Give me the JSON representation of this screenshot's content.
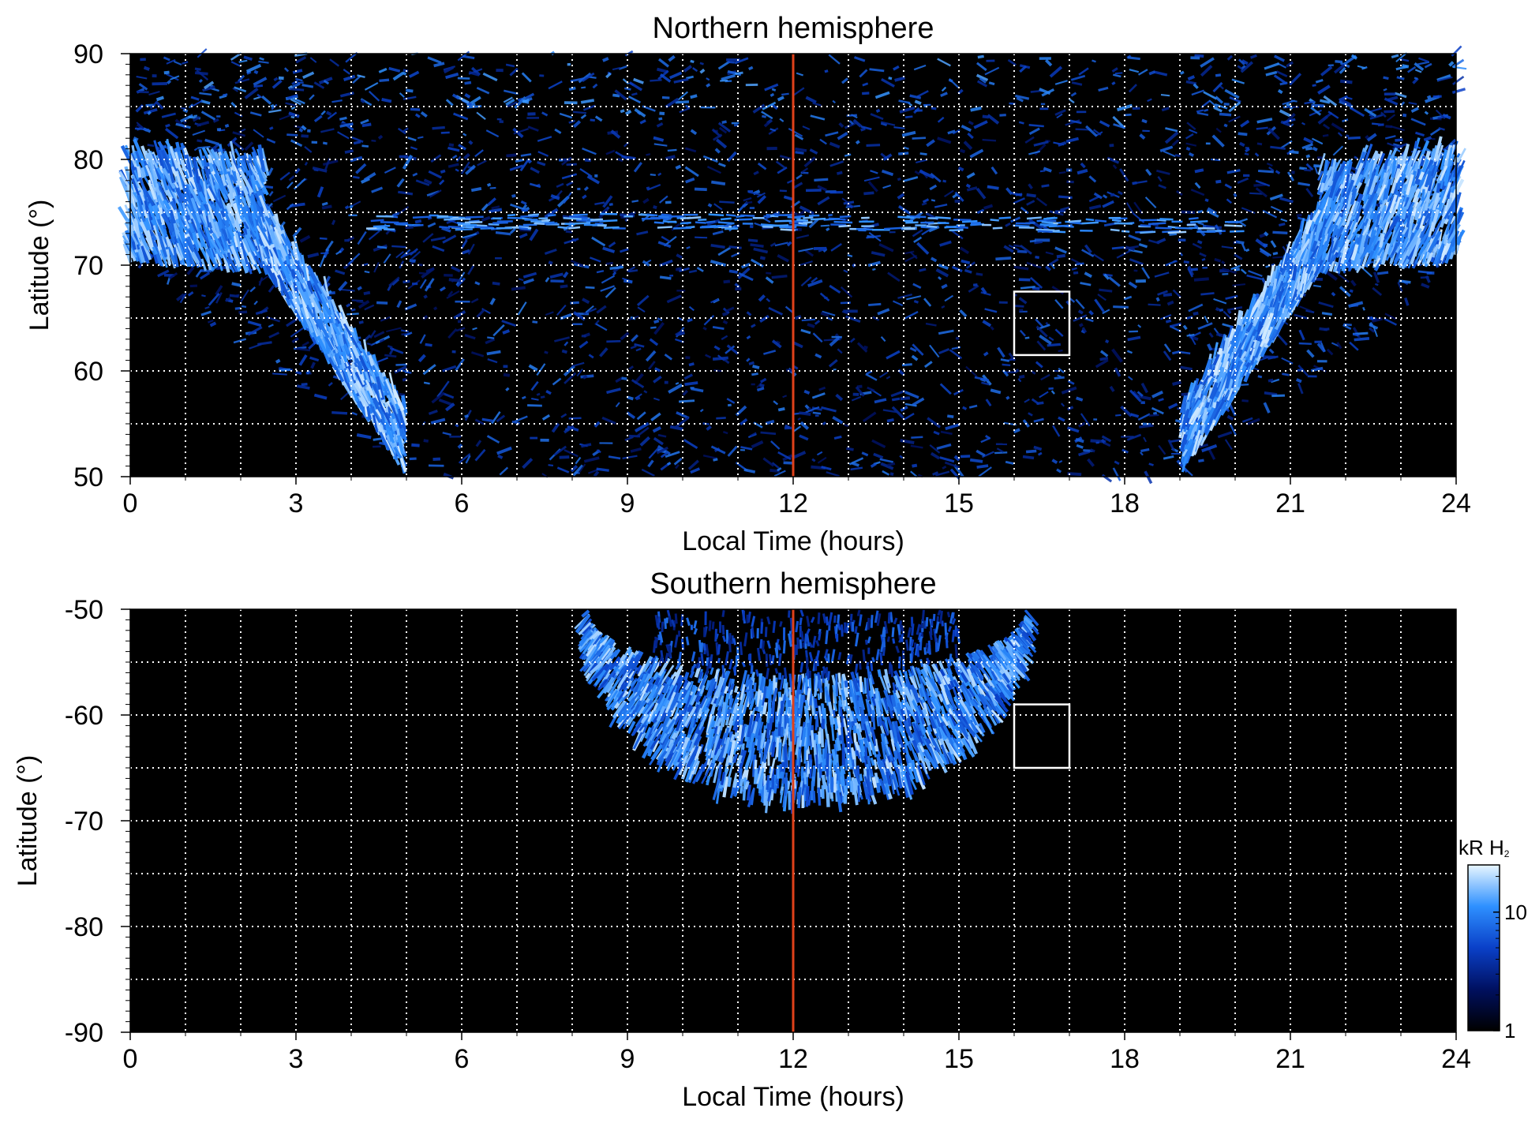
{
  "chart_data": [
    {
      "type": "heatmap",
      "title": "Northern hemisphere",
      "xlabel": "Local Time (hours)",
      "ylabel": "Latitude (°)",
      "xlim": [
        0,
        24
      ],
      "ylim": [
        50,
        90
      ],
      "xticks": [
        "0",
        "3",
        "6",
        "9",
        "12",
        "15",
        "18",
        "21",
        "24"
      ],
      "yticks": [
        "50",
        "60",
        "70",
        "80",
        "90"
      ],
      "grid": true,
      "noon_line_local_time": 12,
      "highlight_box": {
        "x": [
          16,
          17
        ],
        "y": [
          61.5,
          67.5
        ]
      },
      "auroral_oval": {
        "pole_latitude": 90,
        "bright_band_latitude_range": [
          70,
          80
        ],
        "dawn_band_local_time_range": [
          0,
          5
        ],
        "dusk_band_local_time_range": [
          19,
          24
        ]
      }
    },
    {
      "type": "heatmap",
      "title": "Southern hemisphere",
      "xlabel": "Local Time (hours)",
      "ylabel": "Latitude (°)",
      "xlim": [
        0,
        24
      ],
      "ylim": [
        -90,
        -50
      ],
      "xticks": [
        "0",
        "3",
        "6",
        "9",
        "12",
        "15",
        "18",
        "21",
        "24"
      ],
      "yticks": [
        "-50",
        "-60",
        "-70",
        "-80",
        "-90"
      ],
      "grid": true,
      "noon_line_local_time": 12,
      "highlight_box": {
        "x": [
          16,
          17
        ],
        "y": [
          -65,
          -59
        ]
      },
      "emission_region": {
        "local_time_range": [
          8.3,
          16.2
        ],
        "outer_latitude": -67,
        "inner_latitude": -56
      }
    }
  ],
  "colorbar": {
    "unit": "kR H",
    "unit_subscript": "2",
    "scale": "log",
    "range": [
      1,
      25
    ],
    "tick_labels": [
      "1",
      "10"
    ],
    "colors": [
      "#000000",
      "#001060",
      "#0a40c8",
      "#2e90ff",
      "#e8f6ff"
    ]
  },
  "colors": {
    "background": "#000000",
    "noon_line": "#e0411a",
    "grid": "#ffffff",
    "box": "#ffffff"
  }
}
